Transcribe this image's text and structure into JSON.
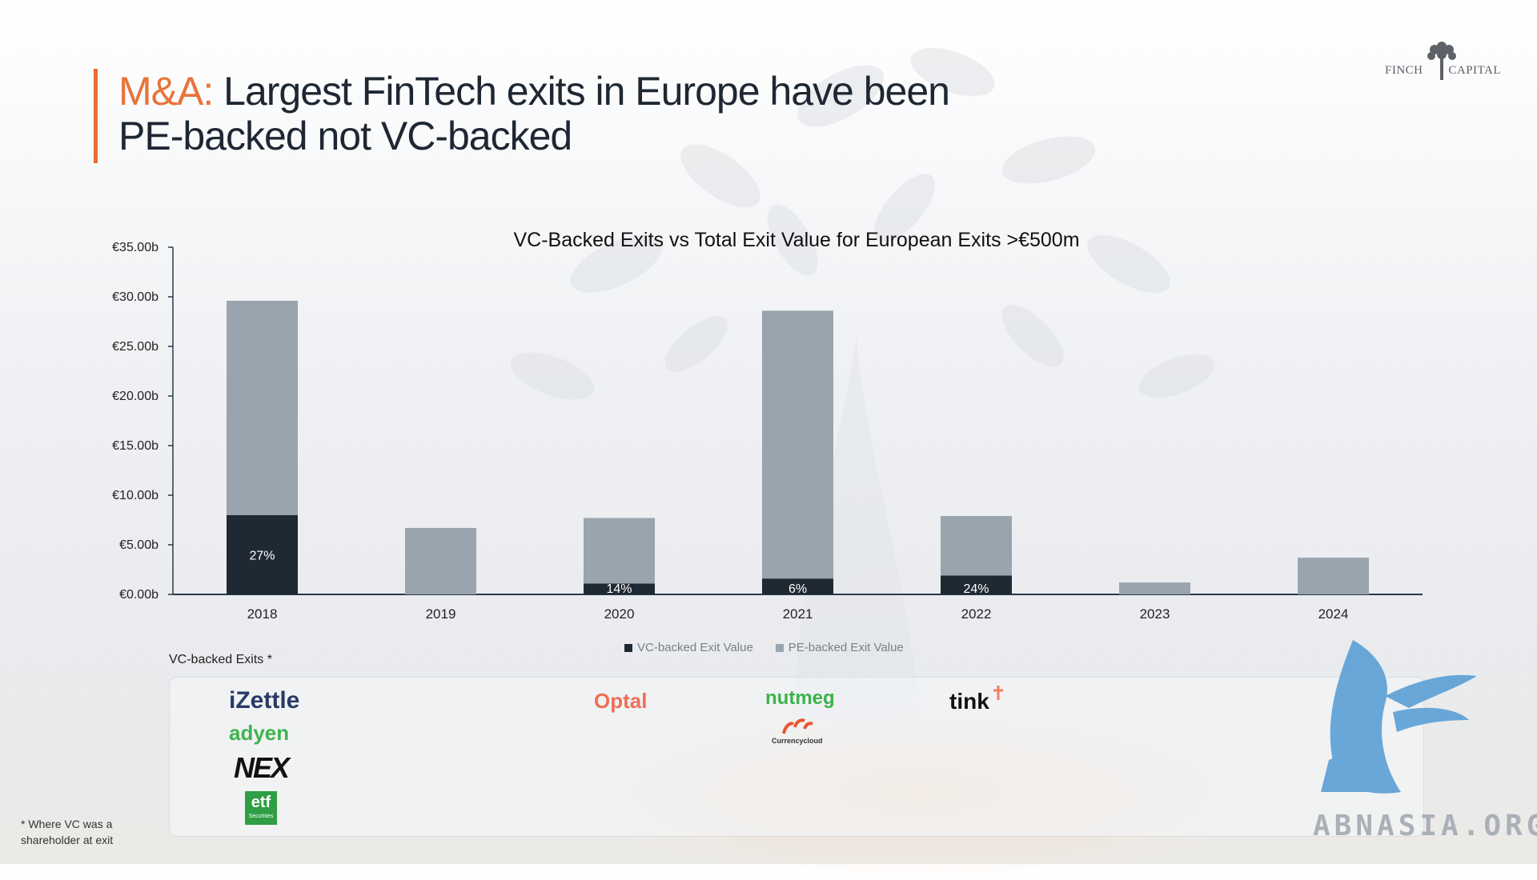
{
  "page": {
    "title_accent": "M&A:",
    "title_rest": " Largest FinTech exits in Europe have been PE-backed not VC-backed",
    "brand_left": "FINCH",
    "brand_right": "CAPITAL",
    "vc_exits_label": "VC-backed Exits *",
    "footnote": "* Where VC was a shareholder at exit",
    "watermark": "ABNASIA.ORG",
    "logos": {
      "izettle": "iZettle",
      "adyen": "adyen",
      "nex": "NEX",
      "etf": "etf",
      "etf_sub": "Securities",
      "optal": "Optal",
      "nutmeg": "nutmeg",
      "currencycloud": "Currencycloud",
      "tink": "tink"
    }
  },
  "colors": {
    "accent": "#e8733a",
    "vc_bar": "#1f2933",
    "pe_bar": "#9aa4ae",
    "axis": "#2a3a4a"
  },
  "chart_data": {
    "type": "bar",
    "stacked": true,
    "title": "VC-Backed Exits vs Total Exit Value for European Exits >€500m",
    "categories": [
      "2018",
      "2019",
      "2020",
      "2021",
      "2022",
      "2023",
      "2024"
    ],
    "series": [
      {
        "name": "VC-backed Exit Value",
        "values": [
          8.0,
          0,
          1.1,
          1.6,
          1.9,
          0,
          0
        ]
      },
      {
        "name": "PE-backed Exit Value",
        "values": [
          21.6,
          6.7,
          6.6,
          27.0,
          6.0,
          1.2,
          3.7
        ]
      }
    ],
    "data_labels": [
      "27%",
      "",
      "14%",
      "6%",
      "24%",
      "",
      ""
    ],
    "ylim": [
      0,
      35
    ],
    "yticks": [
      0,
      5,
      10,
      15,
      20,
      25,
      30,
      35
    ],
    "ytick_labels": [
      "€0.00b",
      "€5.00b",
      "€10.00b",
      "€15.00b",
      "€20.00b",
      "€25.00b",
      "€30.00b",
      "€35.00b"
    ],
    "grid": false,
    "legend_position": "bottom"
  }
}
